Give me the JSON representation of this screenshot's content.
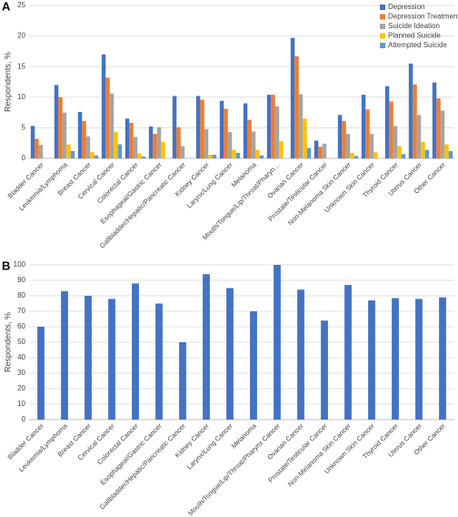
{
  "chart_data": [
    {
      "type": "bar",
      "panel_label": "A",
      "y_label": "Respondents, %",
      "categories": [
        "Bladder Cancer",
        "Leukemia/Lymphoma",
        "Breast Cancer",
        "Cervical Cancer",
        "Colorectal Cancer",
        "Esophageal/Gastric Cancer",
        "Gallbladder/Hepatic/Pancreatic Cancer",
        "Kidney Cancer",
        "Larynx/Lung Cancer",
        "Melanoma",
        "Mouth/Tongue/Lip/Throat/Pharyn…",
        "Ovarian Cancer",
        "Prostate/Testicular Cancer",
        "Non-Melanoma Skin Cancer",
        "Unknown Skin Cancer",
        "Thyroid Cancer",
        "Uterus Cancer",
        "Other Cancer"
      ],
      "series": [
        {
          "name": "Depression",
          "color": "#4472c4",
          "values": [
            5.3,
            12,
            7.6,
            17,
            6.5,
            5.2,
            10.2,
            10.2,
            9.4,
            9,
            10.4,
            19.7,
            2.9,
            7.1,
            10.4,
            11.8,
            15.5,
            12.4
          ]
        },
        {
          "name": "Depression Treatment",
          "color": "#ed7d31",
          "values": [
            3.2,
            10,
            6.1,
            13.2,
            5.8,
            4,
            5.1,
            9.6,
            8.1,
            6.3,
            10.4,
            16.7,
            1.9,
            6.1,
            8,
            9.3,
            12.1,
            9.8
          ]
        },
        {
          "name": "Suicide Ideation",
          "color": "#a5a5a5",
          "values": [
            2.2,
            7.5,
            3.6,
            10.6,
            3.5,
            5.1,
            2,
            4.8,
            4.3,
            4.4,
            8.5,
            10.5,
            2.4,
            4,
            4,
            5.3,
            7.1,
            7.8
          ]
        },
        {
          "name": "Planned Suicide",
          "color": "#ffc000",
          "values": [
            0,
            2.3,
            1,
            4.3,
            0.8,
            2.7,
            0,
            0.6,
            1.4,
            1.4,
            2.8,
            6.5,
            0,
            0.9,
            1,
            2,
            2.7,
            2.3
          ]
        },
        {
          "name": "Attempted Suicide",
          "color": "#5b9bd5",
          "values": [
            0,
            1.2,
            0.5,
            2.3,
            0.3,
            0,
            0,
            0.6,
            0.9,
            0.5,
            0,
            1.7,
            0,
            0.4,
            0,
            0.7,
            1.4,
            1.2
          ]
        }
      ],
      "ylim": [
        0,
        25
      ],
      "yticks": [
        0,
        5,
        10,
        15,
        20,
        25
      ],
      "grid": true,
      "legend": "top-right"
    },
    {
      "type": "bar",
      "panel_label": "B",
      "y_label": "Respondents, %",
      "categories": [
        "Bladder Cancer",
        "Leukemia/Lymphoma",
        "Breast Cancer",
        "Cervical Cancer",
        "Colorectal Cancer",
        "Esophageal/Gastric Cancer",
        "Gallbladder/Hepatic/Pancreatic Cancer",
        "Kidney Cancer",
        "Larynx/Lung Cancer",
        "Melanoma",
        "Mouth/Tongue/Lip/Throat/Pharynx Cancer",
        "Ovarian Cancer",
        "Prostate/Testicular Cancer",
        "Non-Melanoma Skin Cancer",
        "Unknown Skin Cancer",
        "Thyroid Cancer",
        "Uterus Cancer",
        "Other Cancer"
      ],
      "series": [
        {
          "color": "#4472c4",
          "values": [
            60,
            83,
            80,
            78,
            88,
            75,
            50,
            94,
            85,
            70,
            100,
            84,
            64,
            87,
            77,
            78.5,
            78,
            79
          ]
        }
      ],
      "ylim": [
        0,
        100
      ],
      "yticks": [
        0,
        10,
        20,
        30,
        40,
        50,
        60,
        70,
        80,
        90,
        100
      ],
      "grid": true
    }
  ]
}
